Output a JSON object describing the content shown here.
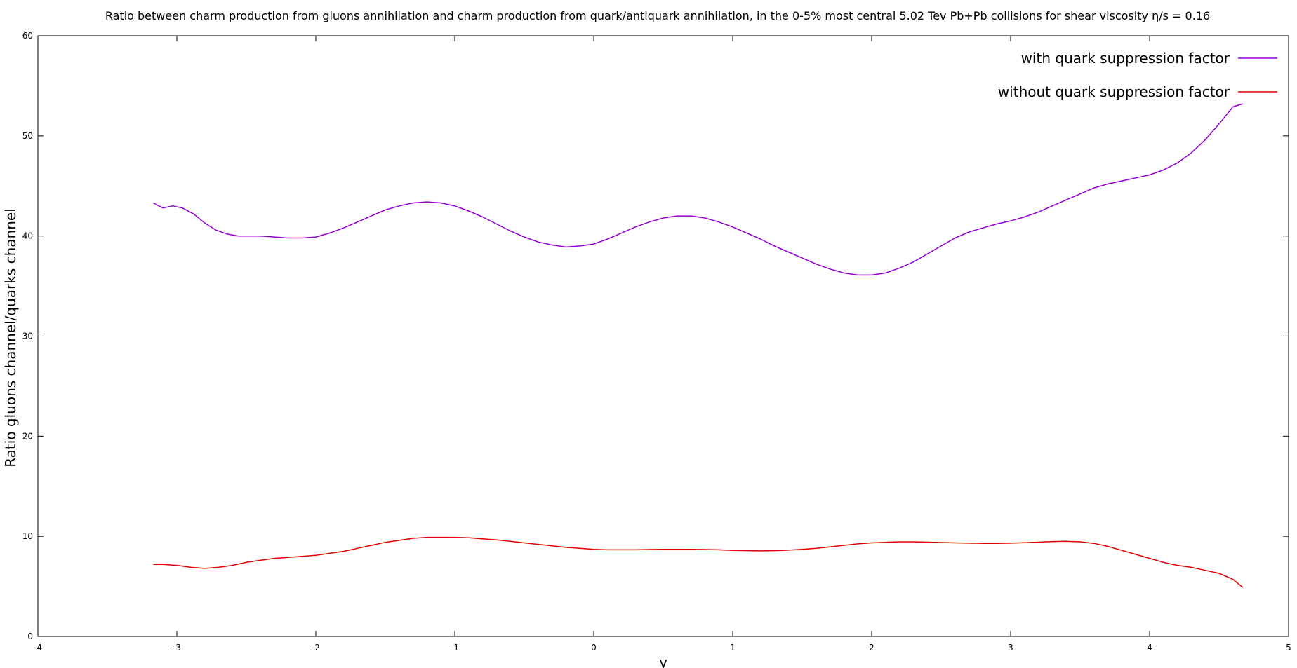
{
  "chart_data": {
    "type": "line",
    "title": "Ratio between charm production from gluons annihilation and charm production from quark/antiquark annihilation, in the 0-5% most central 5.02 Tev Pb+Pb collisions for shear viscosity η/s = 0.16",
    "xlabel": "y",
    "ylabel": "Ratio gluons channel/quarks channel",
    "xlim": [
      -4,
      5
    ],
    "ylim": [
      0,
      60
    ],
    "xticks": [
      "-4",
      "-3",
      "-2",
      "-1",
      "0",
      "1",
      "2",
      "3",
      "4",
      "5"
    ],
    "yticks": [
      "0",
      "10",
      "20",
      "30",
      "40",
      "50",
      "60"
    ],
    "grid": false,
    "legend_position": "top-right",
    "series": [
      {
        "name": "with quark suppression factor",
        "color": "#9400d3",
        "x": [
          -3.17,
          -3.1,
          -3.03,
          -2.96,
          -2.88,
          -2.8,
          -2.72,
          -2.64,
          -2.56,
          -2.48,
          -2.4,
          -2.3,
          -2.2,
          -2.1,
          -2.0,
          -1.9,
          -1.8,
          -1.7,
          -1.6,
          -1.5,
          -1.4,
          -1.3,
          -1.2,
          -1.1,
          -1.0,
          -0.9,
          -0.8,
          -0.7,
          -0.6,
          -0.5,
          -0.4,
          -0.3,
          -0.2,
          -0.1,
          0.0,
          0.1,
          0.2,
          0.3,
          0.4,
          0.5,
          0.6,
          0.7,
          0.8,
          0.9,
          1.0,
          1.1,
          1.2,
          1.3,
          1.4,
          1.5,
          1.6,
          1.7,
          1.8,
          1.9,
          2.0,
          2.1,
          2.2,
          2.3,
          2.4,
          2.5,
          2.6,
          2.7,
          2.8,
          2.9,
          3.0,
          3.1,
          3.2,
          3.3,
          3.4,
          3.5,
          3.6,
          3.7,
          3.8,
          3.9,
          4.0,
          4.1,
          4.2,
          4.3,
          4.4,
          4.5,
          4.6,
          4.67
        ],
        "values": [
          43.3,
          42.8,
          43.0,
          42.8,
          42.2,
          41.3,
          40.6,
          40.2,
          40.0,
          40.0,
          40.0,
          39.9,
          39.8,
          39.8,
          39.9,
          40.3,
          40.8,
          41.4,
          42.0,
          42.6,
          43.0,
          43.3,
          43.4,
          43.3,
          43.0,
          42.5,
          41.9,
          41.2,
          40.5,
          39.9,
          39.4,
          39.1,
          38.9,
          39.0,
          39.2,
          39.7,
          40.3,
          40.9,
          41.4,
          41.8,
          42.0,
          42.0,
          41.8,
          41.4,
          40.9,
          40.3,
          39.7,
          39.0,
          38.4,
          37.8,
          37.2,
          36.7,
          36.3,
          36.1,
          36.1,
          36.3,
          36.8,
          37.4,
          38.2,
          39.0,
          39.8,
          40.4,
          40.8,
          41.2,
          41.5,
          41.9,
          42.4,
          43.0,
          43.6,
          44.2,
          44.8,
          45.2,
          45.5,
          45.8,
          46.1,
          46.6,
          47.3,
          48.3,
          49.6,
          51.2,
          52.9,
          53.2
        ]
      },
      {
        "name": "without quark suppression factor",
        "color": "#e00000",
        "x": [
          -3.17,
          -3.1,
          -3.0,
          -2.9,
          -2.8,
          -2.7,
          -2.6,
          -2.5,
          -2.4,
          -2.3,
          -2.2,
          -2.1,
          -2.0,
          -1.9,
          -1.8,
          -1.7,
          -1.6,
          -1.5,
          -1.4,
          -1.3,
          -1.2,
          -1.1,
          -1.0,
          -0.9,
          -0.8,
          -0.7,
          -0.6,
          -0.5,
          -0.4,
          -0.3,
          -0.2,
          -0.1,
          0.0,
          0.1,
          0.2,
          0.3,
          0.4,
          0.5,
          0.6,
          0.7,
          0.8,
          0.9,
          1.0,
          1.1,
          1.2,
          1.3,
          1.4,
          1.5,
          1.6,
          1.7,
          1.8,
          1.9,
          2.0,
          2.1,
          2.2,
          2.3,
          2.4,
          2.5,
          2.6,
          2.7,
          2.8,
          2.9,
          3.0,
          3.1,
          3.2,
          3.3,
          3.4,
          3.5,
          3.6,
          3.7,
          3.8,
          3.9,
          4.0,
          4.1,
          4.2,
          4.3,
          4.4,
          4.5,
          4.6,
          4.67
        ],
        "values": [
          7.2,
          7.2,
          7.1,
          6.9,
          6.8,
          6.9,
          7.1,
          7.4,
          7.6,
          7.8,
          7.9,
          8.0,
          8.1,
          8.3,
          8.5,
          8.8,
          9.1,
          9.4,
          9.6,
          9.8,
          9.9,
          9.9,
          9.9,
          9.85,
          9.75,
          9.65,
          9.5,
          9.35,
          9.2,
          9.05,
          8.9,
          8.8,
          8.7,
          8.65,
          8.65,
          8.65,
          8.68,
          8.7,
          8.7,
          8.7,
          8.68,
          8.65,
          8.6,
          8.57,
          8.55,
          8.57,
          8.62,
          8.7,
          8.8,
          8.95,
          9.1,
          9.25,
          9.35,
          9.4,
          9.45,
          9.45,
          9.42,
          9.38,
          9.35,
          9.32,
          9.3,
          9.3,
          9.32,
          9.36,
          9.42,
          9.48,
          9.5,
          9.45,
          9.3,
          9.0,
          8.6,
          8.2,
          7.8,
          7.4,
          7.1,
          6.9,
          6.6,
          6.3,
          5.7,
          4.9
        ]
      }
    ]
  }
}
